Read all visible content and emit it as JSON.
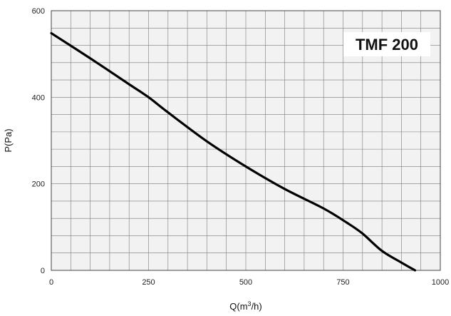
{
  "chart_data": {
    "type": "line",
    "title": "TMF 200",
    "xlabel": "Q(m",
    "xlabel_sup": "3",
    "xlabel_tail": "/h)",
    "ylabel": "P(Pa)",
    "xlim": [
      0,
      1000
    ],
    "ylim": [
      0,
      600
    ],
    "x_ticks": [
      0,
      250,
      500,
      750,
      1000
    ],
    "y_ticks": [
      0,
      200,
      400,
      600
    ],
    "x_minor_step": 50,
    "y_minor_step": 40,
    "grid": true,
    "series": [
      {
        "color": "#000000",
        "x": [
          0,
          100,
          200,
          250,
          300,
          400,
          500,
          600,
          700,
          760,
          800,
          850,
          900,
          935
        ],
        "y": [
          548,
          490,
          430,
          400,
          365,
          298,
          240,
          188,
          143,
          110,
          85,
          45,
          18,
          0
        ]
      }
    ]
  }
}
